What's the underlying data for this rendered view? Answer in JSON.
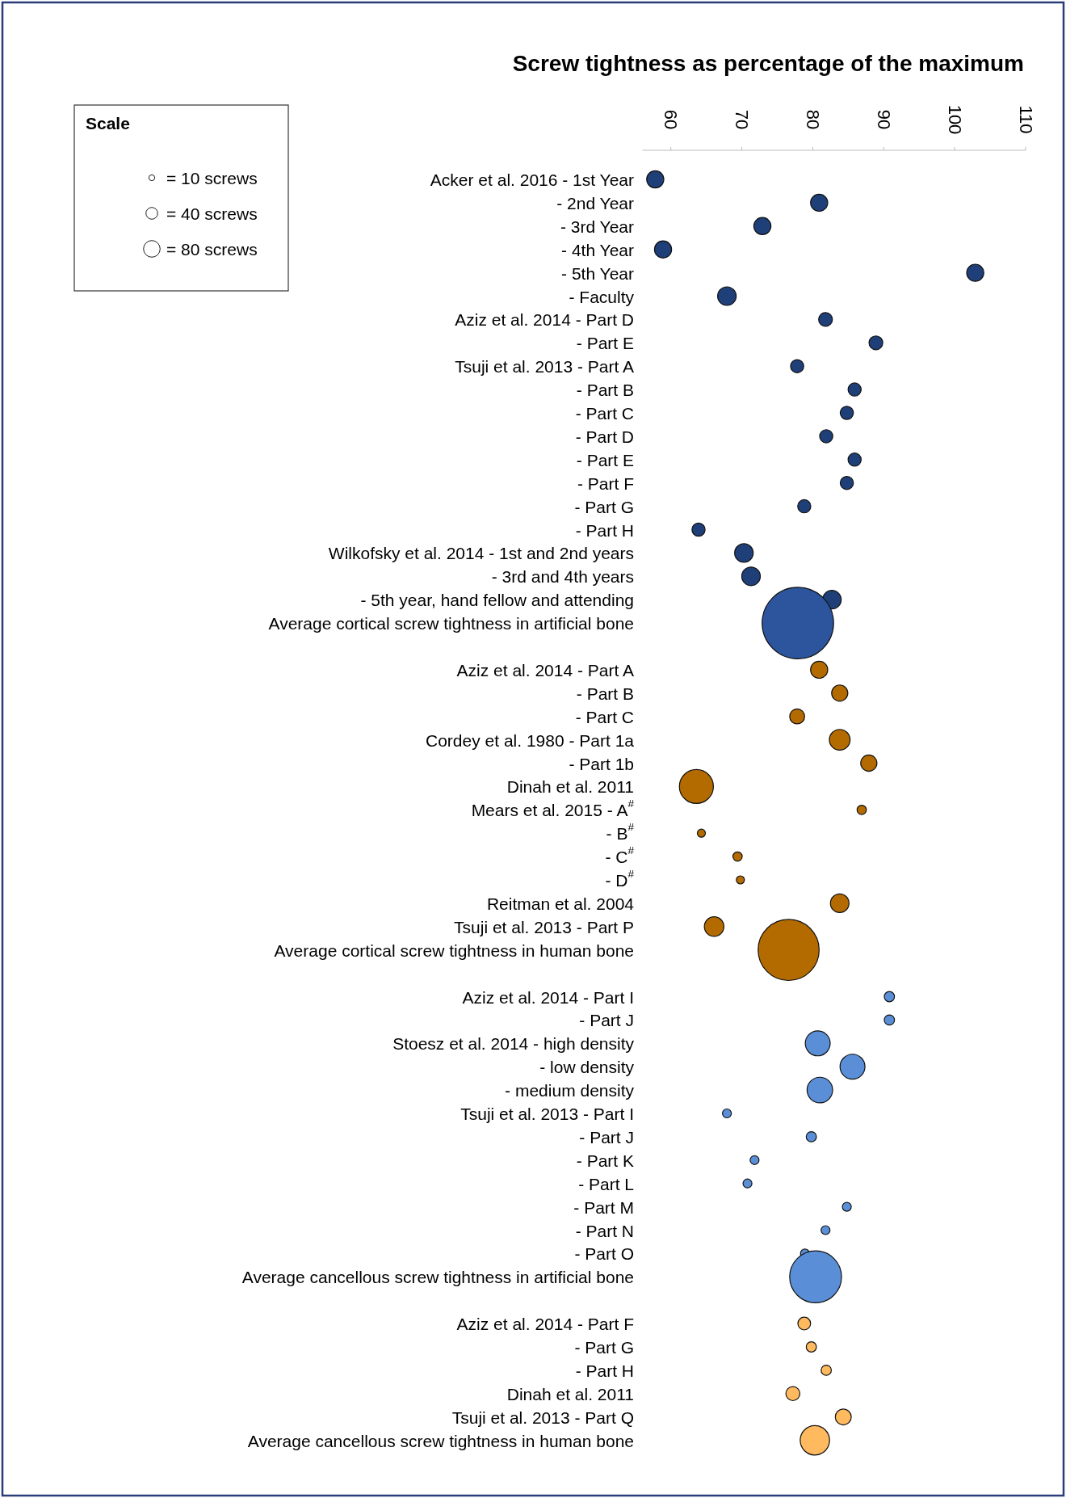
{
  "chart_data": {
    "type": "bubble",
    "orientation": "horizontal",
    "xlabel": "Screw tightness as percentage of the maximum",
    "legend_title": "Scale",
    "xlim": [
      56,
      110
    ],
    "xticks": [
      60,
      70,
      80,
      90,
      100,
      110
    ],
    "size_legend": [
      {
        "value": 10,
        "label": "= 10 screws"
      },
      {
        "value": 40,
        "label": "= 40 screws"
      },
      {
        "value": 80,
        "label": "= 80 screws"
      }
    ],
    "categories": [
      "Acker et al. 2016  - 1st Year",
      "- 2nd Year",
      "- 3rd Year",
      "- 4th Year",
      "- 5th Year",
      "- Faculty",
      "Aziz et al. 2014 - Part D",
      "- Part E",
      "Tsuji et al. 2013 - Part A",
      "- Part B",
      "- Part C",
      "- Part D",
      "- Part E",
      "- Part F",
      "- Part G",
      "- Part H",
      "Wilkofsky et al. 2014 - 1st and 2nd years",
      "- 3rd and 4th years",
      "- 5th year, hand fellow and attending",
      "Average cortical screw tightness in artificial bone",
      null,
      "Aziz et al. 2014 - Part A",
      "- Part B",
      "- Part C",
      "Cordey et al. 1980 - Part 1a",
      "- Part 1b",
      "Dinah et al. 2011",
      "Mears et al. 2015 - A$^{#}$",
      "- B$^{#}$",
      "- C$^{#}$",
      "- D$^{#}$",
      "Reitman et al. 2004",
      "Tsuji et al. 2013 - Part P",
      "Average cortical screw tightness in human bone",
      null,
      "Aziz et al. 2014 - Part I",
      "- Part J",
      "Stoesz et al. 2014 - high density",
      "- low density",
      "- medium density",
      "Tsuji et al. 2013 - Part I",
      "- Part J",
      "- Part K",
      "- Part L",
      "- Part M",
      "- Part N",
      "- Part O",
      "Average cancellous screw tightness in artificial bone",
      null,
      "Aziz et al. 2014 - Part F",
      "- Part G",
      "- Part H",
      "Dinah et al. 2011",
      "Tsuji et al. 2013 - Part Q",
      "Average cancellous screw tightness in human bone"
    ],
    "values": [
      57.8,
      80.9,
      72.9,
      58.9,
      102.9,
      67.9,
      81.8,
      88.9,
      77.8,
      85.9,
      84.8,
      81.9,
      85.9,
      84.8,
      78.8,
      63.9,
      70.3,
      71.3,
      82.7,
      77.9,
      null,
      80.9,
      83.8,
      77.8,
      83.8,
      87.9,
      63.6,
      86.9,
      64.3,
      69.4,
      69.8,
      83.8,
      66.1,
      76.6,
      null,
      90.8,
      90.8,
      80.7,
      85.6,
      81.0,
      67.9,
      79.8,
      71.8,
      70.8,
      84.8,
      81.8,
      78.9,
      80.4,
      null,
      78.8,
      79.8,
      81.9,
      77.2,
      84.3,
      80.3
    ],
    "sizes": [
      85,
      85,
      85,
      85,
      85,
      100,
      55,
      55,
      50,
      50,
      50,
      50,
      50,
      50,
      50,
      50,
      100,
      100,
      100,
      1480,
      null,
      85,
      76,
      65,
      125,
      76,
      335,
      25,
      19,
      25,
      19,
      100,
      111,
      1080,
      null,
      30,
      30,
      180,
      180,
      190,
      23,
      30,
      23,
      23,
      23,
      23,
      23,
      780,
      null,
      47,
      30,
      30,
      57,
      74,
      250
    ],
    "colors": [
      "#1f3f78",
      "#1f3f78",
      "#1f3f78",
      "#1f3f78",
      "#1f3f78",
      "#1f3f78",
      "#1f3f78",
      "#1f3f78",
      "#1f3f78",
      "#1f3f78",
      "#1f3f78",
      "#1f3f78",
      "#1f3f78",
      "#1f3f78",
      "#1f3f78",
      "#1f3f78",
      "#1f3f78",
      "#1f3f78",
      "#1f3f78",
      "#2c559e",
      null,
      "#b36b00",
      "#b36b00",
      "#b36b00",
      "#b36b00",
      "#b36b00",
      "#b36b00",
      "#b36b00",
      "#b36b00",
      "#b36b00",
      "#b36b00",
      "#b36b00",
      "#b36b00",
      "#b36b00",
      null,
      "#5a8fd7",
      "#5a8fd7",
      "#5a8fd7",
      "#5a8fd7",
      "#5a8fd7",
      "#5a8fd7",
      "#5a8fd7",
      "#5a8fd7",
      "#5a8fd7",
      "#5a8fd7",
      "#5a8fd7",
      "#5a8fd7",
      "#5a8fd7",
      null,
      "#ffb95e",
      "#ffb95e",
      "#ffb95e",
      "#ffb95e",
      "#ffb95e",
      "#ffb95e"
    ]
  }
}
